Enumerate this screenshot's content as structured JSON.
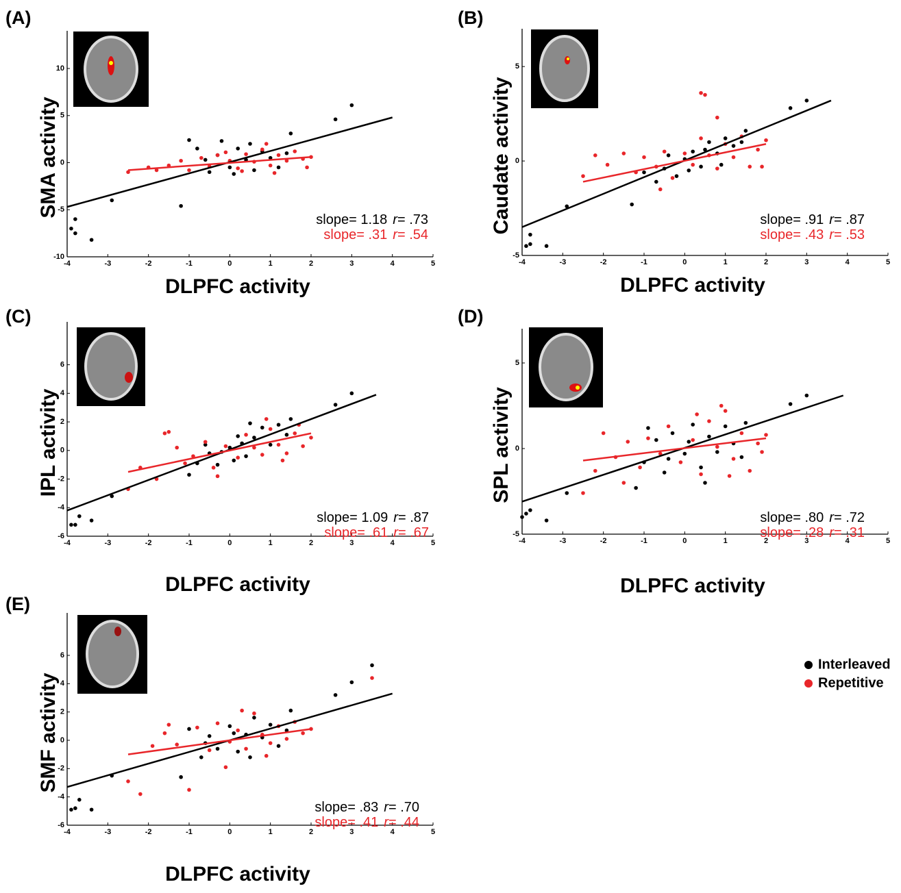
{
  "chart_data": [
    {
      "type": "scatter",
      "panel_label": "(A)",
      "x_label": "DLPFC activity",
      "y_label": "SMA activity",
      "xlim": [
        -4,
        5
      ],
      "xticks": [
        -4,
        -3,
        -2,
        -1,
        0,
        1,
        2,
        3,
        4,
        5
      ],
      "ylim": [
        -10,
        14
      ],
      "yticks": [
        -10,
        -5,
        0,
        5,
        10
      ],
      "series": [
        {
          "color": "#000000",
          "x": [
            -3.9,
            -3.8,
            -3.8,
            -3.4,
            -2.9,
            -1.2,
            2.6,
            3,
            1.5,
            -1,
            -0.8,
            -0.5,
            -0.3,
            0,
            0.2,
            0.4,
            0.6,
            0.8,
            1,
            1.2,
            -0.6,
            0.1,
            0.5,
            1.4,
            -0.2
          ],
          "y": [
            -7,
            -6,
            -7.5,
            -8.2,
            -4,
            -4.6,
            4.6,
            6.1,
            3.1,
            2.4,
            1.5,
            -1,
            0.8,
            -0.5,
            1.5,
            0.3,
            -0.8,
            1.2,
            0.5,
            -0.5,
            0.3,
            -1.2,
            2,
            1,
            2.3
          ],
          "fit": {
            "x": [
              -4,
              4
            ],
            "y": [
              -4.7,
              4.8
            ]
          }
        },
        {
          "color": "#e8262a",
          "x": [
            -2.5,
            -2,
            -1.8,
            -1.5,
            -1.2,
            -1,
            -0.7,
            -0.5,
            -0.3,
            0,
            0.2,
            0.4,
            0.6,
            0.8,
            1,
            1.2,
            1.4,
            1.6,
            1.8,
            2,
            0.3,
            -0.1,
            0.9,
            1.1,
            1.9
          ],
          "y": [
            -1,
            -0.5,
            -0.8,
            -0.3,
            0.2,
            -0.8,
            0.5,
            -0.4,
            0.8,
            0.2,
            -0.6,
            0.9,
            0.1,
            1.4,
            -0.3,
            0.8,
            0.2,
            1.2,
            0.4,
            0.6,
            -0.9,
            1.1,
            2,
            -1.1,
            -0.5
          ],
          "fit": {
            "x": [
              -2.5,
              2
            ],
            "y": [
              -0.8,
              0.6
            ]
          }
        }
      ],
      "annotations": [
        {
          "color": "#000000",
          "slope": "slope= 1.18",
          "r": "r",
          "r_value": "= .73"
        },
        {
          "color": "#e8262a",
          "slope": "slope= .31",
          "r": "r",
          "r_value": "= .54"
        }
      ]
    },
    {
      "type": "scatter",
      "panel_label": "(B)",
      "x_label": "DLPFC activity",
      "y_label": "Caudate activity",
      "xlim": [
        -4,
        5
      ],
      "xticks": [
        -4,
        -3,
        -2,
        -1,
        0,
        1,
        2,
        3,
        4,
        5
      ],
      "ylim": [
        -5,
        7
      ],
      "yticks": [
        -5,
        0,
        5
      ],
      "series": [
        {
          "color": "#000000",
          "x": [
            -3.9,
            -3.8,
            -3.8,
            -3.4,
            -2.9,
            -1.3,
            2.6,
            3,
            1.5,
            -1,
            -0.7,
            -0.5,
            -0.2,
            0,
            0.2,
            0.4,
            0.6,
            0.8,
            1,
            1.2,
            -0.4,
            0.1,
            0.5,
            1.4,
            0.9
          ],
          "y": [
            -4.5,
            -4.4,
            -3.9,
            -4.5,
            -2.4,
            -2.3,
            2.8,
            3.2,
            1.6,
            -0.6,
            -1.1,
            -0.4,
            -0.8,
            0.1,
            0.5,
            -0.3,
            1,
            0.4,
            1.2,
            0.8,
            0.3,
            -0.5,
            0.6,
            1,
            -0.2
          ],
          "fit": {
            "x": [
              -4,
              3.6
            ],
            "y": [
              -3.5,
              3.2
            ]
          }
        },
        {
          "color": "#e8262a",
          "x": [
            -2.5,
            -2.2,
            -1.9,
            -1.5,
            -1.2,
            -1,
            -0.7,
            -0.5,
            -0.3,
            0,
            0.2,
            0.4,
            0.6,
            0.8,
            1,
            1.2,
            1.4,
            1.6,
            1.8,
            2,
            0.4,
            0.5,
            0.8,
            -0.6,
            1.9
          ],
          "y": [
            -0.8,
            0.3,
            -0.2,
            0.4,
            -0.6,
            0.2,
            -0.3,
            0.5,
            -0.9,
            0.4,
            -0.2,
            1.2,
            0.3,
            -0.4,
            0.9,
            0.2,
            1.3,
            -0.3,
            0.6,
            1.1,
            3.6,
            3.5,
            2.3,
            -1.5,
            -0.3
          ],
          "fit": {
            "x": [
              -2.5,
              2
            ],
            "y": [
              -1.1,
              0.9
            ]
          }
        }
      ],
      "annotations": [
        {
          "color": "#000000",
          "slope": "slope= .91",
          "r": "r",
          "r_value": "= .87"
        },
        {
          "color": "#e8262a",
          "slope": "slope= .43",
          "r": "r",
          "r_value": "= .53"
        }
      ]
    },
    {
      "type": "scatter",
      "panel_label": "(C)",
      "x_label": "DLPFC activity",
      "y_label": "IPL activity",
      "xlim": [
        -4,
        5
      ],
      "xticks": [
        -4,
        -3,
        -2,
        -1,
        0,
        1,
        2,
        3,
        4,
        5
      ],
      "ylim": [
        -6,
        9
      ],
      "yticks": [
        -6,
        -4,
        -2,
        0,
        2,
        4,
        6
      ],
      "series": [
        {
          "color": "#000000",
          "x": [
            -3.9,
            -3.8,
            -3.7,
            -3.4,
            -2.9,
            -1,
            2.6,
            3,
            1.5,
            -0.8,
            -0.5,
            -0.3,
            0,
            0.2,
            0.4,
            0.6,
            0.8,
            1,
            1.2,
            -0.6,
            0.1,
            0.5,
            1.4,
            0.3,
            -0.2
          ],
          "y": [
            -5.2,
            -5.2,
            -4.6,
            -4.9,
            -3.2,
            -1.7,
            3.2,
            4,
            2.2,
            -0.9,
            -0.2,
            -1,
            0.2,
            1,
            -0.4,
            0.9,
            1.6,
            0.4,
            1.8,
            0.4,
            -0.7,
            1.9,
            1.1,
            0.5,
            -0.1
          ],
          "fit": {
            "x": [
              -4,
              3.6
            ],
            "y": [
              -4.2,
              3.9
            ]
          }
        },
        {
          "color": "#e8262a",
          "x": [
            -2.5,
            -2.2,
            -1.8,
            -1.6,
            -1.3,
            -1.1,
            -0.9,
            -0.6,
            -0.4,
            -0.1,
            0.2,
            0.4,
            0.6,
            0.8,
            1,
            1.2,
            1.4,
            1.6,
            1.8,
            2,
            -1.5,
            0.9,
            1.3,
            -0.3,
            1.7
          ],
          "y": [
            -2.7,
            -1.2,
            -2,
            1.2,
            0.2,
            -0.9,
            -0.4,
            0.6,
            -1.2,
            0.3,
            -0.5,
            1.1,
            0.2,
            -0.3,
            1.5,
            0.4,
            -0.2,
            1.2,
            0.3,
            0.9,
            1.3,
            2.2,
            -0.7,
            -1.8,
            1.8
          ],
          "fit": {
            "x": [
              -2.5,
              2
            ],
            "y": [
              -1.5,
              1.2
            ]
          }
        }
      ],
      "annotations": [
        {
          "color": "#000000",
          "slope": "slope= 1.09",
          "r": "r",
          "r_value": "= .87"
        },
        {
          "color": "#e8262a",
          "slope": "slope= .61",
          "r": "r",
          "r_value": "= .67"
        }
      ]
    },
    {
      "type": "scatter",
      "panel_label": "(D)",
      "x_label": "DLPFC activity",
      "y_label": "SPL activity",
      "xlim": [
        -4,
        5
      ],
      "xticks": [
        -4,
        -3,
        -2,
        -1,
        0,
        1,
        2,
        3,
        4,
        5
      ],
      "ylim": [
        -5,
        7
      ],
      "yticks": [
        -5,
        0,
        5
      ],
      "series": [
        {
          "color": "#000000",
          "x": [
            -4,
            -3.9,
            -3.8,
            -3.4,
            -2.9,
            -1.2,
            2.6,
            3,
            1.5,
            -1,
            -0.7,
            -0.5,
            -0.3,
            0,
            0.2,
            0.4,
            0.6,
            0.8,
            1,
            1.2,
            -0.4,
            0.1,
            0.5,
            1.4,
            -0.9
          ],
          "y": [
            -4,
            -3.8,
            -3.6,
            -4.2,
            -2.6,
            -2.3,
            2.6,
            3.1,
            1.5,
            -0.8,
            0.5,
            -1.4,
            0.9,
            -0.3,
            1.4,
            -1.1,
            0.7,
            -0.2,
            1.3,
            0.3,
            -0.6,
            0.4,
            -2,
            -0.5,
            1.2
          ],
          "fit": {
            "x": [
              -4,
              3.9
            ],
            "y": [
              -3.1,
              3.1
            ]
          }
        },
        {
          "color": "#e8262a",
          "x": [
            -2.5,
            -2.2,
            -2,
            -1.7,
            -1.4,
            -1.1,
            -0.9,
            -0.6,
            -0.4,
            -0.1,
            0.2,
            0.4,
            0.6,
            0.8,
            1,
            1.2,
            1.4,
            1.6,
            1.8,
            2,
            0.9,
            -1.5,
            0.3,
            1.1,
            1.9
          ],
          "y": [
            -2.6,
            -1.3,
            0.9,
            -0.5,
            0.4,
            -1.1,
            0.6,
            -0.3,
            1.3,
            -0.8,
            0.5,
            -1.5,
            1.6,
            0.1,
            2.2,
            -0.6,
            0.9,
            -1.3,
            0.3,
            0.8,
            2.5,
            -2,
            2,
            -1.6,
            -0.2
          ],
          "fit": {
            "x": [
              -2.5,
              2
            ],
            "y": [
              -0.7,
              0.6
            ]
          }
        }
      ],
      "annotations": [
        {
          "color": "#000000",
          "slope": "slope= .80",
          "r": "r",
          "r_value": "= .72"
        },
        {
          "color": "#e8262a",
          "slope": "slope= .28",
          "r": "r",
          "r_value": "= .31"
        }
      ]
    },
    {
      "type": "scatter",
      "panel_label": "(E)",
      "x_label": "DLPFC activity",
      "y_label": "SMF activity",
      "xlim": [
        -4,
        5
      ],
      "xticks": [
        -4,
        -3,
        -2,
        -1,
        0,
        1,
        2,
        3,
        4,
        5
      ],
      "ylim": [
        -6,
        9
      ],
      "yticks": [
        -6,
        -4,
        -2,
        0,
        2,
        4,
        6
      ],
      "series": [
        {
          "name": "Interleaved",
          "color": "#000000",
          "x": [
            -3.9,
            -3.8,
            -3.7,
            -3.4,
            -2.9,
            -1.2,
            2.6,
            3,
            3.5,
            1.5,
            -1,
            -0.7,
            -0.5,
            -0.3,
            0,
            0.2,
            0.4,
            0.6,
            0.8,
            1,
            1.2,
            -0.6,
            0.1,
            0.5,
            1.4
          ],
          "y": [
            -4.9,
            -4.8,
            -4.2,
            -4.9,
            -2.5,
            -2.6,
            3.2,
            4.1,
            5.3,
            2.1,
            0.8,
            -1.2,
            0.3,
            -0.6,
            1,
            -0.8,
            0.4,
            1.6,
            0.2,
            1.1,
            -0.4,
            -0.2,
            0.5,
            -1.2,
            0.7
          ],
          "fit": {
            "x": [
              -4,
              4
            ],
            "y": [
              -3.3,
              3.3
            ]
          }
        },
        {
          "name": "Repetitive",
          "color": "#e8262a",
          "x": [
            -2.5,
            -2.2,
            -1.9,
            -1.6,
            -1.3,
            -1,
            -0.8,
            -0.5,
            -0.3,
            0,
            0.2,
            0.4,
            0.6,
            0.8,
            1,
            1.2,
            1.4,
            1.6,
            1.8,
            2,
            3.5,
            0.3,
            -0.1,
            0.9,
            -1.5
          ],
          "y": [
            -2.9,
            -3.8,
            -0.4,
            0.5,
            -0.3,
            -3.5,
            0.9,
            -0.7,
            1.2,
            -0.1,
            0.7,
            -0.6,
            1.9,
            0.4,
            -0.2,
            1,
            0.1,
            1.3,
            0.5,
            0.8,
            4.4,
            2.1,
            -1.9,
            -1.1,
            1.1
          ],
          "fit": {
            "x": [
              -2.5,
              2
            ],
            "y": [
              -1,
              0.8
            ]
          }
        }
      ],
      "annotations": [
        {
          "color": "#000000",
          "slope": "slope= .83",
          "r": "r",
          "r_value": "= .70"
        },
        {
          "color": "#e8262a",
          "slope": "slope= .41",
          "r": "r",
          "r_value": "= .44"
        }
      ]
    }
  ]
}
